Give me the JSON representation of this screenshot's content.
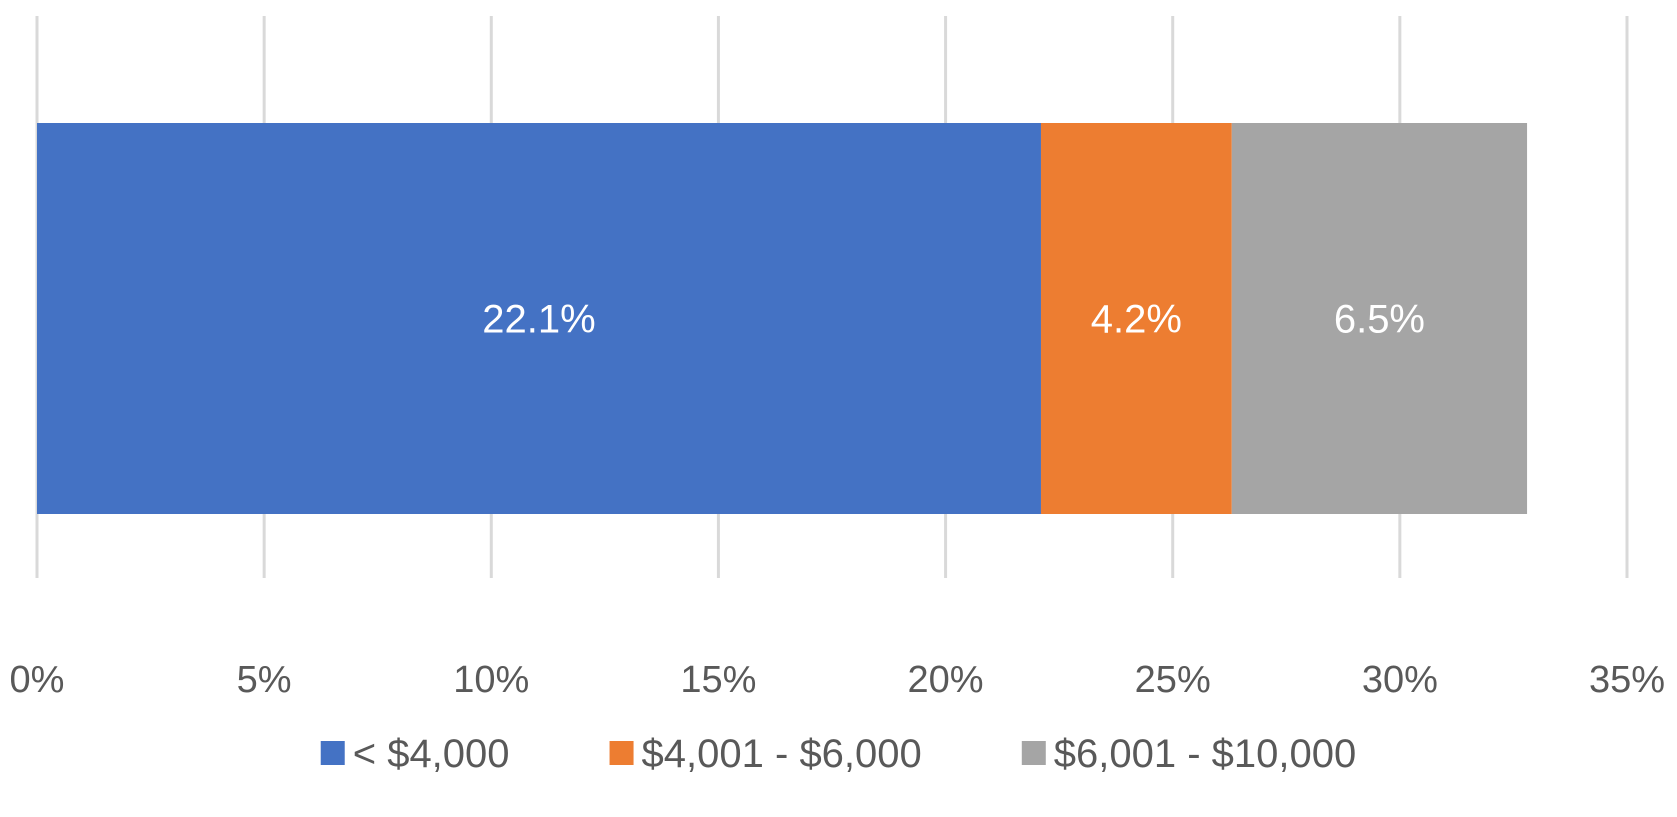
{
  "chart_data": {
    "type": "bar",
    "orientation": "horizontal",
    "stacked": true,
    "title": "",
    "xlabel": "",
    "ylabel": "",
    "xlim": [
      0,
      35
    ],
    "x_ticks": [
      0,
      5,
      10,
      15,
      20,
      25,
      30,
      35
    ],
    "x_tick_labels": [
      "0%",
      "5%",
      "10%",
      "15%",
      "20%",
      "25%",
      "30%",
      "35%"
    ],
    "grid": "vertical",
    "legend_position": "bottom",
    "series": [
      {
        "name": "< $4,000",
        "value": 22.1,
        "label": "22.1%",
        "color": "#4472c4"
      },
      {
        "name": "$4,001 - $6,000",
        "value": 4.2,
        "label": "4.2%",
        "color": "#ed7d31"
      },
      {
        "name": "$6,001 - $10,000",
        "value": 6.5,
        "label": "6.5%",
        "color": "#a5a5a5"
      }
    ]
  }
}
